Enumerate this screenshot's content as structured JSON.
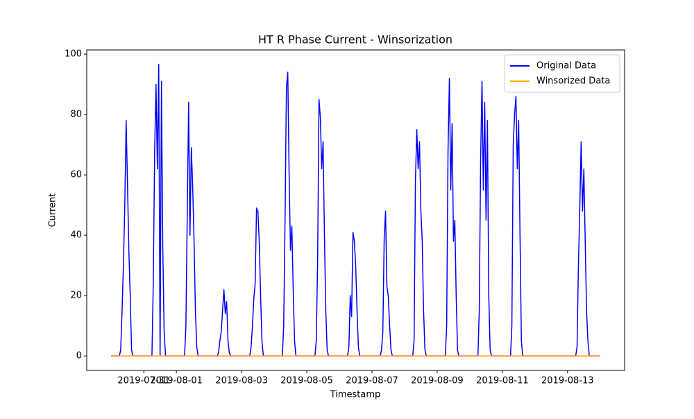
{
  "chart_data": {
    "type": "line",
    "title": "HT R Phase Current - Winsorization",
    "x_label": "Timestamp",
    "y_label": "Current",
    "x": [
      "2019-07-30T00:00",
      "2019-07-30T06:00",
      "2019-07-30T07:00",
      "2019-07-30T08:00",
      "2019-07-30T09:00",
      "2019-07-30T10:00",
      "2019-07-30T11:00",
      "2019-07-30T12:00",
      "2019-07-30T13:00",
      "2019-07-30T14:00",
      "2019-07-30T15:00",
      "2019-07-30T16:00",
      "2019-07-31T00:00",
      "2019-07-31T06:00",
      "2019-07-31T07:00",
      "2019-07-31T08:00",
      "2019-07-31T09:00",
      "2019-07-31T10:00",
      "2019-07-31T11:00",
      "2019-07-31T12:00",
      "2019-07-31T13:00",
      "2019-07-31T14:00",
      "2019-07-31T15:00",
      "2019-07-31T16:00",
      "2019-08-01T00:00",
      "2019-08-01T06:00",
      "2019-08-01T07:00",
      "2019-08-01T08:00",
      "2019-08-01T09:00",
      "2019-08-01T10:00",
      "2019-08-01T11:00",
      "2019-08-01T12:00",
      "2019-08-01T13:00",
      "2019-08-01T14:00",
      "2019-08-01T15:00",
      "2019-08-01T16:00",
      "2019-08-02T00:00",
      "2019-08-02T06:00",
      "2019-08-02T07:00",
      "2019-08-02T08:00",
      "2019-08-02T09:00",
      "2019-08-02T10:00",
      "2019-08-02T11:00",
      "2019-08-02T12:00",
      "2019-08-02T13:00",
      "2019-08-02T14:00",
      "2019-08-02T15:00",
      "2019-08-02T16:00",
      "2019-08-03T00:00",
      "2019-08-03T06:00",
      "2019-08-03T07:00",
      "2019-08-03T08:00",
      "2019-08-03T09:00",
      "2019-08-03T10:00",
      "2019-08-03T11:00",
      "2019-08-03T12:00",
      "2019-08-03T13:00",
      "2019-08-03T14:00",
      "2019-08-03T15:00",
      "2019-08-03T16:00",
      "2019-08-04T00:00",
      "2019-08-04T06:00",
      "2019-08-04T07:00",
      "2019-08-04T08:00",
      "2019-08-04T09:00",
      "2019-08-04T10:00",
      "2019-08-04T11:00",
      "2019-08-04T12:00",
      "2019-08-04T13:00",
      "2019-08-04T14:00",
      "2019-08-04T15:00",
      "2019-08-04T16:00",
      "2019-08-05T00:00",
      "2019-08-05T06:00",
      "2019-08-05T07:00",
      "2019-08-05T08:00",
      "2019-08-05T09:00",
      "2019-08-05T10:00",
      "2019-08-05T11:00",
      "2019-08-05T12:00",
      "2019-08-05T13:00",
      "2019-08-05T14:00",
      "2019-08-05T15:00",
      "2019-08-05T16:00",
      "2019-08-06T00:00",
      "2019-08-06T06:00",
      "2019-08-06T07:00",
      "2019-08-06T08:00",
      "2019-08-06T09:00",
      "2019-08-06T10:00",
      "2019-08-06T11:00",
      "2019-08-06T12:00",
      "2019-08-06T13:00",
      "2019-08-06T14:00",
      "2019-08-06T15:00",
      "2019-08-06T16:00",
      "2019-08-07T00:00",
      "2019-08-07T06:00",
      "2019-08-07T07:00",
      "2019-08-07T08:00",
      "2019-08-07T09:00",
      "2019-08-07T10:00",
      "2019-08-07T11:00",
      "2019-08-07T12:00",
      "2019-08-07T13:00",
      "2019-08-07T14:00",
      "2019-08-07T15:00",
      "2019-08-07T16:00",
      "2019-08-08T00:00",
      "2019-08-08T06:00",
      "2019-08-08T07:00",
      "2019-08-08T08:00",
      "2019-08-08T09:00",
      "2019-08-08T10:00",
      "2019-08-08T11:00",
      "2019-08-08T12:00",
      "2019-08-08T13:00",
      "2019-08-08T14:00",
      "2019-08-08T15:00",
      "2019-08-08T16:00",
      "2019-08-09T00:00",
      "2019-08-09T06:00",
      "2019-08-09T07:00",
      "2019-08-09T08:00",
      "2019-08-09T09:00",
      "2019-08-09T10:00",
      "2019-08-09T11:00",
      "2019-08-09T12:00",
      "2019-08-09T13:00",
      "2019-08-09T14:00",
      "2019-08-09T15:00",
      "2019-08-09T16:00",
      "2019-08-10T00:00",
      "2019-08-10T06:00",
      "2019-08-10T07:00",
      "2019-08-10T08:00",
      "2019-08-10T09:00",
      "2019-08-10T10:00",
      "2019-08-10T11:00",
      "2019-08-10T12:00",
      "2019-08-10T13:00",
      "2019-08-10T14:00",
      "2019-08-10T15:00",
      "2019-08-10T16:00",
      "2019-08-11T00:00",
      "2019-08-11T06:00",
      "2019-08-11T07:00",
      "2019-08-11T08:00",
      "2019-08-11T09:00",
      "2019-08-11T10:00",
      "2019-08-11T11:00",
      "2019-08-11T12:00",
      "2019-08-11T13:00",
      "2019-08-11T14:00",
      "2019-08-11T15:00",
      "2019-08-11T16:00",
      "2019-08-12T00:00",
      "2019-08-12T06:00",
      "2019-08-12T07:00",
      "2019-08-12T08:00",
      "2019-08-12T09:00",
      "2019-08-12T10:00",
      "2019-08-12T11:00",
      "2019-08-12T12:00",
      "2019-08-12T13:00",
      "2019-08-12T14:00",
      "2019-08-12T15:00",
      "2019-08-12T16:00",
      "2019-08-13T00:00",
      "2019-08-13T06:00",
      "2019-08-13T07:00",
      "2019-08-13T08:00",
      "2019-08-13T09:00",
      "2019-08-13T10:00",
      "2019-08-13T11:00",
      "2019-08-13T12:00",
      "2019-08-13T13:00",
      "2019-08-13T14:00",
      "2019-08-13T15:00",
      "2019-08-13T16:00",
      "2019-08-14T00:00"
    ],
    "series": [
      {
        "name": "Original Data",
        "color": "#0000ff",
        "values": [
          0,
          0,
          2,
          15,
          30,
          50,
          78,
          57,
          35,
          20,
          2,
          0,
          0,
          0,
          25,
          68,
          90,
          62,
          96.6,
          0,
          91,
          35,
          8,
          0,
          0,
          0,
          10,
          47,
          84,
          40,
          69,
          56,
          38,
          15,
          3,
          0,
          0,
          0,
          1,
          5,
          8,
          15,
          22,
          14,
          18,
          5,
          1,
          0,
          0,
          0,
          3,
          10,
          19,
          24,
          49,
          48,
          38,
          20,
          5,
          0,
          0,
          0,
          10,
          45,
          89,
          94,
          60,
          35,
          43,
          22,
          5,
          0,
          0,
          0,
          5,
          32,
          85,
          79,
          62,
          71,
          40,
          15,
          2,
          0,
          0,
          0,
          3,
          20,
          13,
          41,
          38,
          30,
          15,
          3,
          0,
          0,
          0,
          0,
          2,
          8,
          39,
          48,
          23,
          20,
          10,
          2,
          0,
          0,
          0,
          0,
          5,
          58,
          75,
          62,
          71,
          48,
          38,
          15,
          2,
          0,
          0,
          0,
          10,
          68,
          92,
          55,
          77,
          38,
          45,
          20,
          2,
          0,
          0,
          0,
          15,
          65,
          91,
          55,
          84,
          45,
          78,
          20,
          2,
          0,
          0,
          0,
          10,
          70,
          80,
          86,
          62,
          78,
          40,
          5,
          0,
          0,
          0,
          0,
          0,
          0,
          0,
          0,
          0,
          0,
          0,
          0,
          0,
          0,
          0,
          0,
          3,
          30,
          49,
          71,
          48,
          62,
          38,
          15,
          5,
          0,
          0
        ]
      },
      {
        "name": "Winsorized Data",
        "color": "#ffa500",
        "values": [
          0,
          0,
          0,
          0,
          0,
          0,
          0,
          0,
          0,
          0,
          0,
          0,
          0,
          0,
          0,
          0,
          0,
          0,
          0,
          0,
          0,
          0,
          0,
          0,
          0,
          0,
          0,
          0,
          0,
          0,
          0,
          0,
          0,
          0,
          0,
          0,
          0,
          0,
          0,
          0,
          0,
          0,
          0,
          0,
          0,
          0,
          0,
          0,
          0,
          0,
          0,
          0,
          0,
          0,
          0,
          0,
          0,
          0,
          0,
          0,
          0,
          0,
          0,
          0,
          0,
          0,
          0,
          0,
          0,
          0,
          0,
          0,
          0,
          0,
          0,
          0,
          0,
          0,
          0,
          0,
          0,
          0,
          0,
          0,
          0,
          0,
          0,
          0,
          0,
          0,
          0,
          0,
          0,
          0,
          0,
          0,
          0,
          0,
          0,
          0,
          0,
          0,
          0,
          0,
          0,
          0,
          0,
          0,
          0,
          0,
          0,
          0,
          0,
          0,
          0,
          0,
          0,
          0,
          0,
          0,
          0,
          0,
          0,
          0,
          0,
          0,
          0,
          0,
          0,
          0,
          0,
          0,
          0,
          0,
          0,
          0,
          0,
          0,
          0,
          0,
          0,
          0,
          0,
          0,
          0,
          0,
          0,
          0,
          0,
          0,
          0,
          0,
          0,
          0,
          0,
          0,
          0,
          0,
          0,
          0,
          0,
          0,
          0,
          0,
          0,
          0,
          0,
          0,
          0,
          0,
          0,
          0,
          0,
          0,
          0,
          0,
          0,
          0,
          0,
          0,
          0
        ]
      }
    ],
    "xlim": [
      "2019-07-29T06:00",
      "2019-08-14T18:00"
    ],
    "xticks": [
      "2019-07-31",
      "2019-08-01",
      "2019-08-03",
      "2019-08-05",
      "2019-08-07",
      "2019-08-09",
      "2019-08-11",
      "2019-08-13"
    ],
    "ylim": [
      -4.8,
      101.4
    ],
    "yticks": [
      0,
      20,
      40,
      60,
      80,
      100
    ],
    "legend": "upper right"
  }
}
